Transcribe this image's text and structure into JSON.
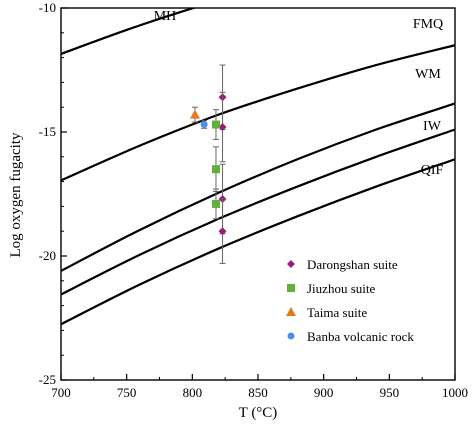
{
  "chart_data": {
    "type": "line",
    "xlabel": "T (°C)",
    "ylabel": "Log oxygen fugacity",
    "xlim": [
      700,
      1000
    ],
    "ylim": [
      -25,
      -10
    ],
    "xticks": [
      "700",
      "750",
      "800",
      "850",
      "900",
      "950",
      "1000"
    ],
    "yticks": [
      "-10",
      "-15",
      "-20",
      "-25"
    ],
    "grid": false,
    "buffer_curves": [
      {
        "name": "MH",
        "x": [
          700,
          760,
          820,
          880,
          940,
          1000
        ],
        "y": [
          -11.85,
          -10.7,
          -9.7,
          -8.9,
          -8.2,
          -7.6
        ]
      },
      {
        "name": "FMQ",
        "x": [
          700,
          760,
          820,
          880,
          940,
          1000
        ],
        "y": [
          -16.95,
          -15.55,
          -14.3,
          -13.25,
          -12.3,
          -11.5
        ]
      },
      {
        "name": "WM",
        "x": [
          700,
          760,
          820,
          880,
          940,
          1000
        ],
        "y": [
          -20.6,
          -18.95,
          -17.45,
          -16.1,
          -14.9,
          -13.85
        ]
      },
      {
        "name": "IW",
        "x": [
          700,
          760,
          820,
          880,
          940,
          1000
        ],
        "y": [
          -21.55,
          -19.95,
          -18.5,
          -17.2,
          -16.0,
          -14.9
        ]
      },
      {
        "name": "QIF",
        "x": [
          700,
          760,
          820,
          880,
          940,
          1000
        ],
        "y": [
          -22.75,
          -21.15,
          -19.7,
          -18.4,
          -17.2,
          -16.1
        ]
      }
    ],
    "series": [
      {
        "name": "Darongshan suite",
        "color": "#9b1b7e",
        "marker": "diamond",
        "points": [
          {
            "x": 823,
            "y": -13.6,
            "err": 1.3
          },
          {
            "x": 823,
            "y": -14.8,
            "err": 1.4
          },
          {
            "x": 823,
            "y": -17.7,
            "err": 1.4
          },
          {
            "x": 823,
            "y": -19.0,
            "err": 1.3
          }
        ]
      },
      {
        "name": "Jiuzhou suite",
        "color": "#5fb13a",
        "marker": "square",
        "points": [
          {
            "x": 818,
            "y": -14.7,
            "err": 0.6
          },
          {
            "x": 818,
            "y": -16.5,
            "err": 0.9
          },
          {
            "x": 818,
            "y": -17.9,
            "err": 0.6
          }
        ]
      },
      {
        "name": "Taima suite",
        "color": "#e07a22",
        "marker": "triangle",
        "points": [
          {
            "x": 802,
            "y": -14.3,
            "err": 0.3
          }
        ]
      },
      {
        "name": "Banba volcanic rock",
        "color": "#4f8fe0",
        "marker": "circle",
        "points": [
          {
            "x": 809,
            "y": -14.7,
            "err": 0.15
          }
        ]
      }
    ],
    "legend_position": "lower-right"
  }
}
